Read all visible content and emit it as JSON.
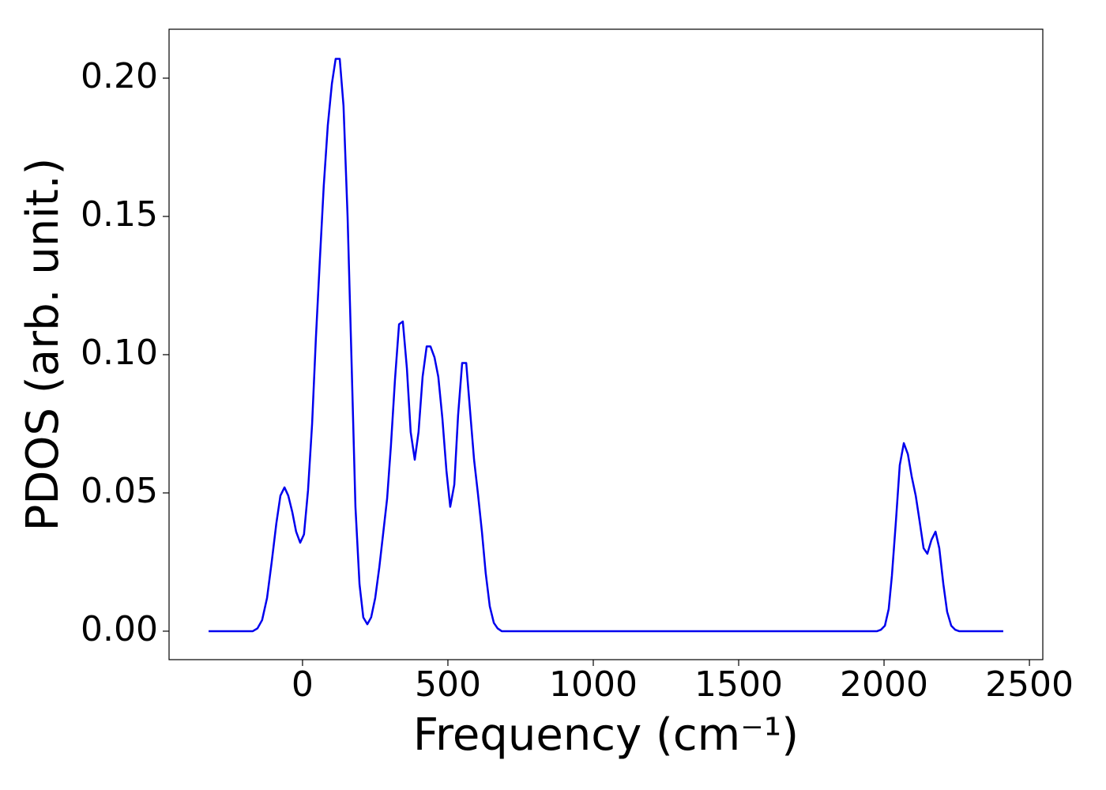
{
  "chart_data": {
    "type": "line",
    "xlabel": "Frequency (cm⁻¹)",
    "ylabel": "PDOS (arb. unit.)",
    "color": "#0000ee",
    "x": [
      -323,
      -171,
      -155,
      -139,
      -122,
      -106,
      -90,
      -76,
      -62,
      -49,
      -35,
      -22,
      -8,
      5,
      19,
      33,
      46,
      60,
      73,
      87,
      101,
      114,
      128,
      141,
      155,
      168,
      182,
      196,
      209,
      223,
      236,
      250,
      264,
      277,
      291,
      304,
      318,
      332,
      345,
      359,
      372,
      386,
      399,
      413,
      427,
      440,
      454,
      467,
      481,
      495,
      508,
      522,
      535,
      549,
      563,
      576,
      590,
      603,
      617,
      630,
      644,
      658,
      671,
      685,
      1976,
      1989,
      2003,
      2016,
      2027,
      2041,
      2054,
      2068,
      2082,
      2095,
      2109,
      2122,
      2136,
      2149,
      2163,
      2177,
      2190,
      2204,
      2217,
      2231,
      2245,
      2258,
      2410
    ],
    "values": [
      0,
      0,
      0.001,
      0.004,
      0.012,
      0.025,
      0.039,
      0.049,
      0.052,
      0.049,
      0.043,
      0.036,
      0.032,
      0.035,
      0.051,
      0.075,
      0.106,
      0.135,
      0.161,
      0.183,
      0.198,
      0.207,
      0.207,
      0.19,
      0.15,
      0.1,
      0.045,
      0.017,
      0.005,
      0.0025,
      0.005,
      0.012,
      0.023,
      0.035,
      0.048,
      0.067,
      0.091,
      0.111,
      0.112,
      0.095,
      0.072,
      0.062,
      0.072,
      0.092,
      0.103,
      0.103,
      0.099,
      0.092,
      0.077,
      0.058,
      0.045,
      0.053,
      0.078,
      0.097,
      0.097,
      0.08,
      0.062,
      0.05,
      0.036,
      0.021,
      0.009,
      0.003,
      0.001,
      0,
      0,
      0.0005,
      0.002,
      0.008,
      0.02,
      0.04,
      0.06,
      0.068,
      0.064,
      0.056,
      0.049,
      0.04,
      0.03,
      0.028,
      0.033,
      0.036,
      0.03,
      0.017,
      0.007,
      0.002,
      0.0005,
      0,
      0
    ],
    "xlim": [
      -459,
      2546
    ],
    "ylim": [
      -0.0103,
      0.2177
    ],
    "xticks": [
      0,
      500,
      1000,
      1500,
      2000,
      2500
    ],
    "yticks": [
      {
        "value": 0,
        "label": "0.00"
      },
      0.05,
      {
        "value": 0.1,
        "label": "0.10"
      },
      0.15,
      {
        "value": 0.2,
        "label": "0.20"
      }
    ],
    "grid": false
  }
}
